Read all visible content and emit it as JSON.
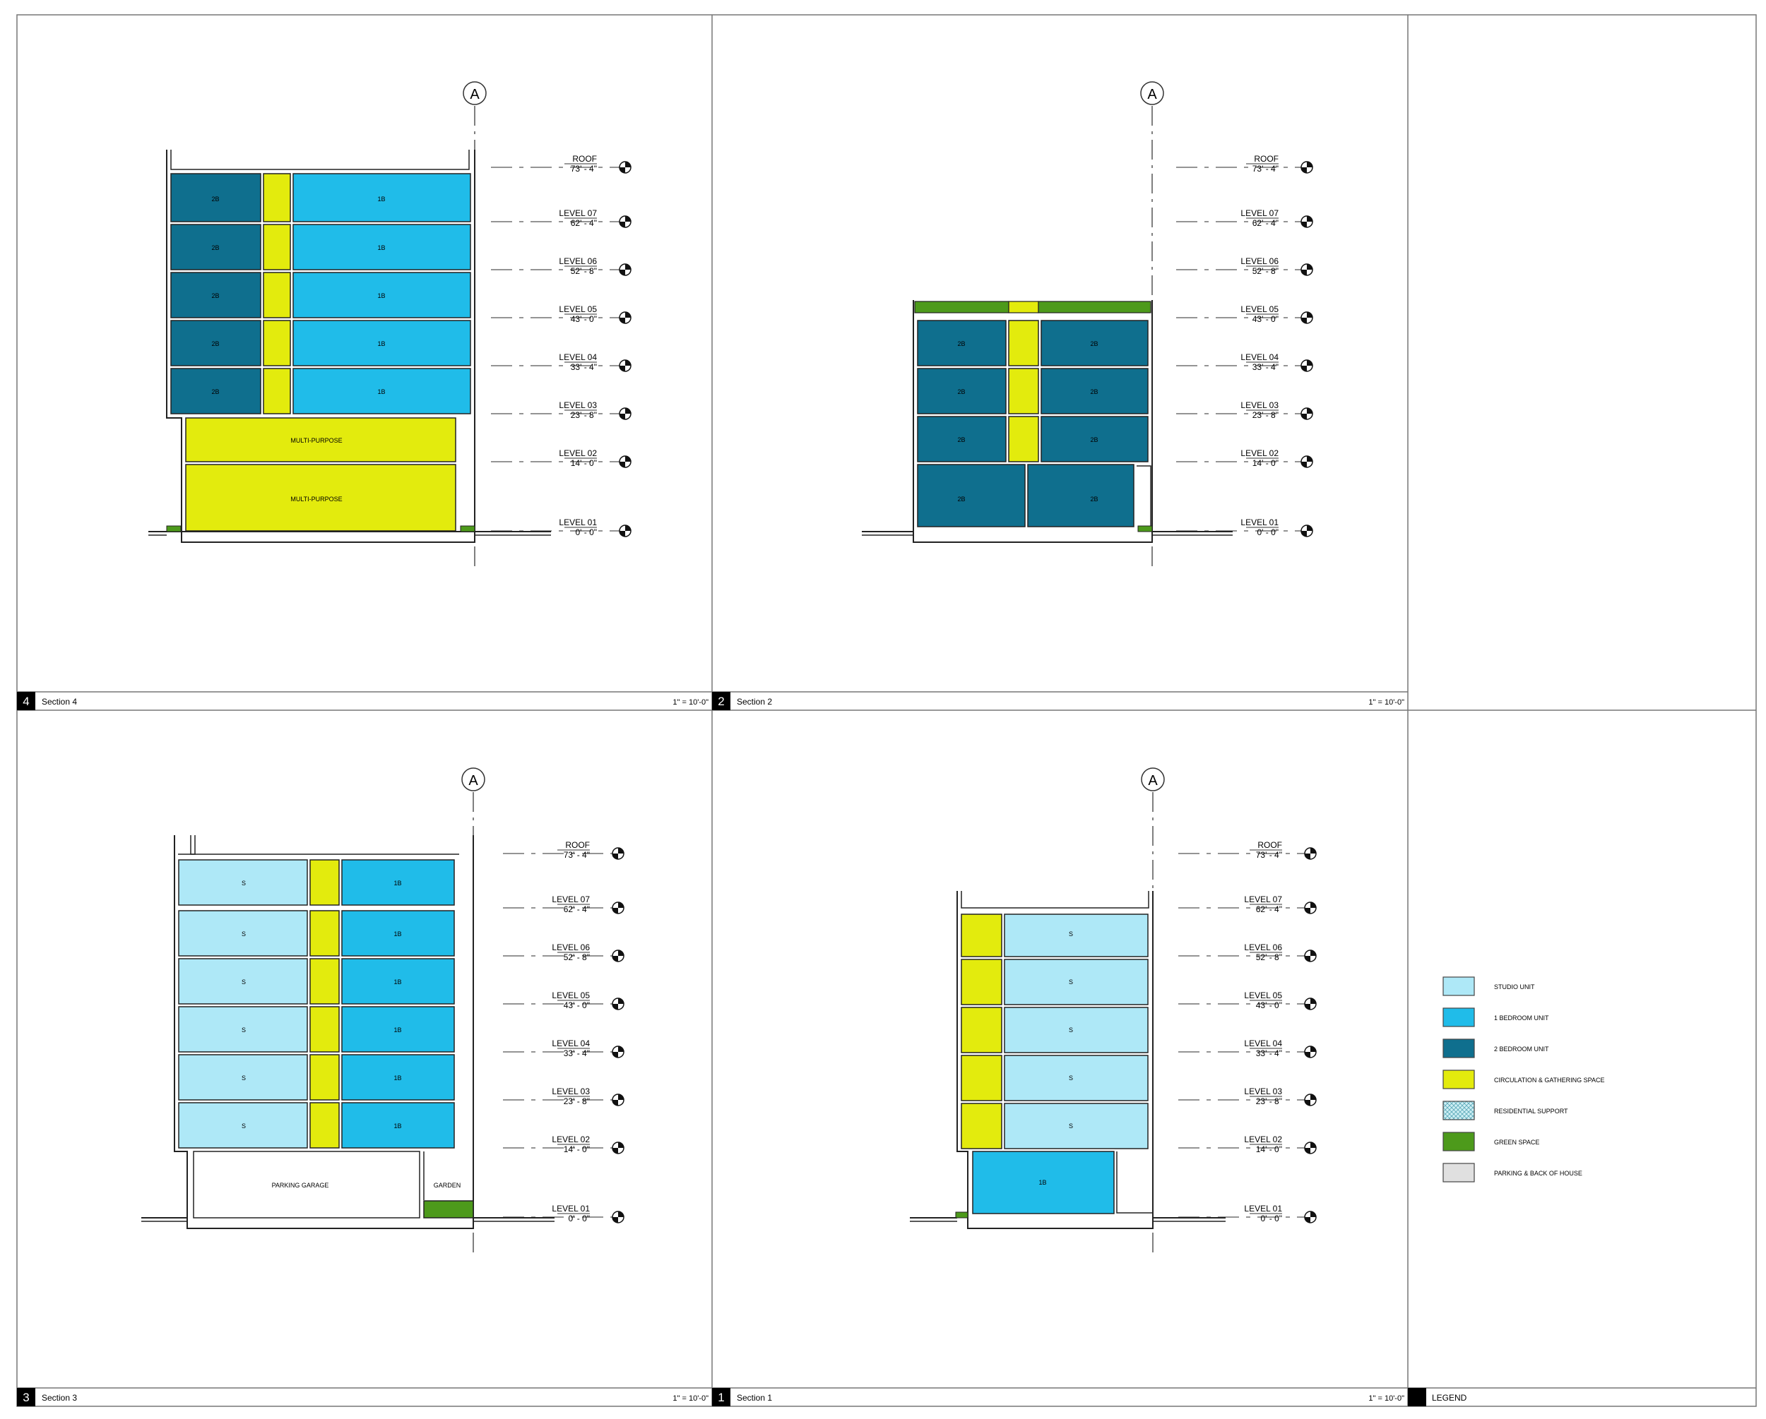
{
  "colors": {
    "studio": "#aee8f7",
    "one_bedroom": "#20bce9",
    "two_bedroom": "#0f6f8e",
    "circulation": "#e3eb0d",
    "green": "#4d9a1b",
    "parking": "#e0e0e0",
    "residential_support": "#cfeff4"
  },
  "grid_bubble": "A",
  "levels": [
    {
      "name": "ROOF",
      "elevation": "73' - 4\""
    },
    {
      "name": "LEVEL 07",
      "elevation": "62' - 4\""
    },
    {
      "name": "LEVEL 06",
      "elevation": "52' - 8\""
    },
    {
      "name": "LEVEL 05",
      "elevation": "43' - 0\""
    },
    {
      "name": "LEVEL 04",
      "elevation": "33' - 4\""
    },
    {
      "name": "LEVEL 03",
      "elevation": "23' - 8\""
    },
    {
      "name": "LEVEL 02",
      "elevation": "14' - 0\""
    },
    {
      "name": "LEVEL 01",
      "elevation": "0' - 0\""
    }
  ],
  "panels": {
    "section4": {
      "number": "4",
      "title": "Section 4",
      "scale": "1\" = 10'-0\""
    },
    "section2": {
      "number": "2",
      "title": "Section 2",
      "scale": "1\" = 10'-0\""
    },
    "section3": {
      "number": "3",
      "title": "Section 3",
      "scale": "1\" = 10'-0\""
    },
    "section1": {
      "number": "1",
      "title": "Section 1",
      "scale": "1\" = 10'-0\""
    },
    "legend": {
      "number": "",
      "title": "LEGEND"
    }
  },
  "room_labels": {
    "studio": "S",
    "one_bedroom": "1B",
    "two_bedroom": "2B",
    "multi_purpose": "MULTI-PURPOSE",
    "parking_garage": "PARKING GARAGE",
    "garden": "GARDEN"
  },
  "legend_items": [
    {
      "label": "STUDIO UNIT",
      "color": "#aee8f7"
    },
    {
      "label": "1 BEDROOM UNIT",
      "color": "#20bce9"
    },
    {
      "label": "2 BEDROOM UNIT",
      "color": "#0f6f8e"
    },
    {
      "label": "CIRCULATION & GATHERING SPACE",
      "color": "#e3eb0d"
    },
    {
      "label": "RESIDENTIAL SUPPORT",
      "color": "#cfeff4"
    },
    {
      "label": "GREEN SPACE",
      "color": "#4d9a1b"
    },
    {
      "label": "PARKING & BACK OF HOUSE",
      "color": "#e0e0e0"
    }
  ]
}
